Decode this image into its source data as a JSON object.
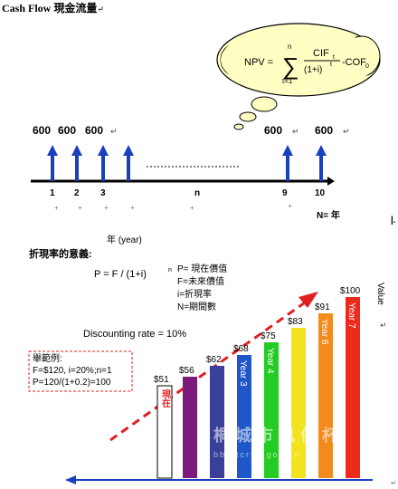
{
  "header": {
    "title": "Cash Flow 現金流量",
    "return_mark": "↵"
  },
  "npv_cloud": {
    "lhs": "NPV =",
    "sum_top": "n",
    "sum_bottom": "t=1",
    "numerator": "CIF",
    "numerator_sub": "t",
    "denominator": "(1+i)",
    "denominator_exp": "t",
    "tail": "-COF",
    "tail_sub": "0"
  },
  "timeline": {
    "cash_labels": [
      "600",
      "600",
      "600",
      "600",
      "600"
    ],
    "ticks": [
      "1",
      "2",
      "3",
      "n",
      "9",
      "10"
    ],
    "n_equals": "N= 年",
    "year_label": "年 (year)"
  },
  "discount": {
    "heading": "折現率的意義:",
    "formula": "P = F / (1+i)",
    "formula_exp": "n",
    "legend": [
      "P= 現在價值",
      "F=未來價值",
      "i=折現率",
      "N=期間數"
    ],
    "rate": "Discounting rate = 10%",
    "example_title": "舉範例:",
    "example_line1": "F=$120, i=20%;n=1",
    "example_line2": "P=120/(1+0.2)=100",
    "value_axis": "Value"
  },
  "chart_data": {
    "type": "bar",
    "categories": [
      "現在",
      "",
      "",
      "Year 3",
      "Year 4",
      "",
      "Year 6",
      "Year 7"
    ],
    "values": [
      51,
      56,
      62,
      68,
      75,
      83,
      91,
      100
    ],
    "value_labels": [
      "$51",
      "$56",
      "$62",
      "$68",
      "$75",
      "$83",
      "$91",
      "$100"
    ],
    "colors": [
      "#ffffff",
      "#7a1a7a",
      "#3a3f99",
      "#1f57c8",
      "#22cc22",
      "#f2e41c",
      "#f28a1c",
      "#ee2a1c"
    ],
    "ylabel": "Value"
  },
  "watermark": {
    "text": "桐城市風俗杯",
    "url": "bbs.tcrsc.gov.cn"
  },
  "colors": {
    "arrow_blue": "#1a3fbf",
    "dash_red": "#e02020"
  }
}
